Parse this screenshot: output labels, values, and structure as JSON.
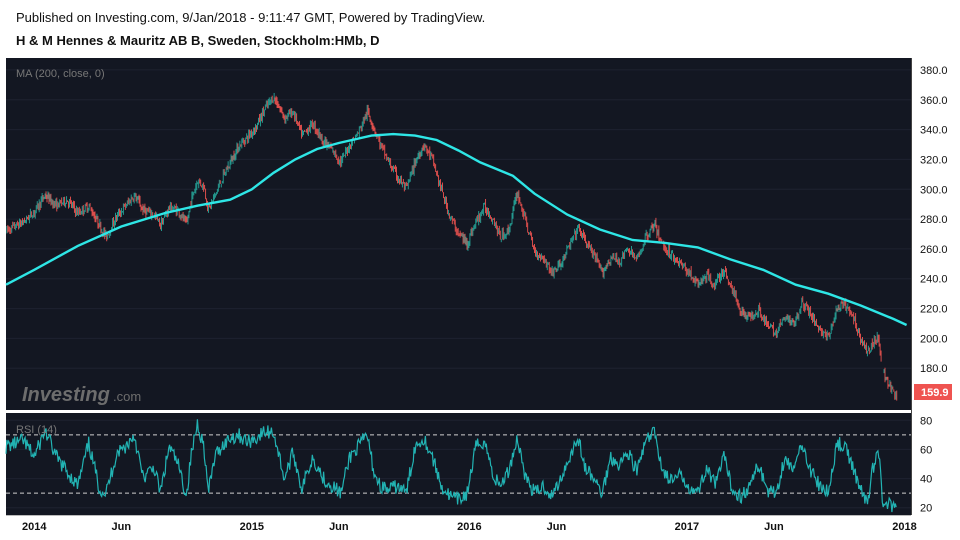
{
  "header": {
    "published": "Published on Investing.com, 9/Jan/2018 - 9:11:47 GMT, Powered by TradingView.",
    "symbol": "H & M Hennes & Mauritz AB B, Sweden, Stockholm:HMb, D"
  },
  "watermark": {
    "brand": "Investing",
    "suffix": ".com"
  },
  "colors": {
    "background": "#131722",
    "candle_up": "#26a69a",
    "candle_down": "#ef5350",
    "ma_line": "#2ee6e6",
    "rsi_line": "#22b3b3",
    "last_price_badge": "#ef5350"
  },
  "chart_data": [
    {
      "type": "candlestick",
      "panel": "price",
      "title": "MA (200, close, 0)",
      "y_ticks": [
        180,
        200,
        220,
        240,
        260,
        280,
        300,
        320,
        340,
        360,
        380
      ],
      "ylim": [
        152,
        388
      ],
      "last_price": "159.9",
      "x_ticks": [
        "2014",
        "Jun",
        "2015",
        "Jun",
        "2016",
        "Jun",
        "2017",
        "Jun",
        "2018"
      ],
      "x_tick_positions": [
        0.0,
        0.4,
        1.0,
        1.4,
        2.0,
        2.4,
        3.0,
        3.4,
        4.0
      ],
      "xlim": [
        -0.13,
        4.03
      ],
      "close_path": [
        {
          "x": -0.13,
          "y": 272
        },
        {
          "x": -0.05,
          "y": 278
        },
        {
          "x": 0.0,
          "y": 285
        },
        {
          "x": 0.05,
          "y": 296
        },
        {
          "x": 0.1,
          "y": 289
        },
        {
          "x": 0.15,
          "y": 293
        },
        {
          "x": 0.2,
          "y": 284
        },
        {
          "x": 0.25,
          "y": 289
        },
        {
          "x": 0.3,
          "y": 276
        },
        {
          "x": 0.33,
          "y": 268
        },
        {
          "x": 0.38,
          "y": 282
        },
        {
          "x": 0.42,
          "y": 289
        },
        {
          "x": 0.46,
          "y": 296
        },
        {
          "x": 0.5,
          "y": 286
        },
        {
          "x": 0.55,
          "y": 283
        },
        {
          "x": 0.58,
          "y": 276
        },
        {
          "x": 0.62,
          "y": 288
        },
        {
          "x": 0.66,
          "y": 286
        },
        {
          "x": 0.7,
          "y": 276
        },
        {
          "x": 0.72,
          "y": 292
        },
        {
          "x": 0.75,
          "y": 306
        },
        {
          "x": 0.78,
          "y": 302
        },
        {
          "x": 0.8,
          "y": 286
        },
        {
          "x": 0.83,
          "y": 296
        },
        {
          "x": 0.86,
          "y": 306
        },
        {
          "x": 0.9,
          "y": 318
        },
        {
          "x": 0.94,
          "y": 329
        },
        {
          "x": 0.98,
          "y": 335
        },
        {
          "x": 1.02,
          "y": 342
        },
        {
          "x": 1.06,
          "y": 354
        },
        {
          "x": 1.1,
          "y": 362
        },
        {
          "x": 1.15,
          "y": 348
        },
        {
          "x": 1.19,
          "y": 352
        },
        {
          "x": 1.23,
          "y": 336
        },
        {
          "x": 1.28,
          "y": 344
        },
        {
          "x": 1.33,
          "y": 332
        },
        {
          "x": 1.37,
          "y": 326
        },
        {
          "x": 1.41,
          "y": 318
        },
        {
          "x": 1.45,
          "y": 330
        },
        {
          "x": 1.49,
          "y": 338
        },
        {
          "x": 1.53,
          "y": 352
        },
        {
          "x": 1.56,
          "y": 342
        },
        {
          "x": 1.59,
          "y": 330
        },
        {
          "x": 1.63,
          "y": 318
        },
        {
          "x": 1.67,
          "y": 308
        },
        {
          "x": 1.71,
          "y": 300
        },
        {
          "x": 1.75,
          "y": 318
        },
        {
          "x": 1.79,
          "y": 330
        },
        {
          "x": 1.83,
          "y": 320
        },
        {
          "x": 1.87,
          "y": 300
        },
        {
          "x": 1.91,
          "y": 282
        },
        {
          "x": 1.95,
          "y": 270
        },
        {
          "x": 1.99,
          "y": 264
        },
        {
          "x": 2.03,
          "y": 278
        },
        {
          "x": 2.07,
          "y": 288
        },
        {
          "x": 2.11,
          "y": 280
        },
        {
          "x": 2.14,
          "y": 268
        },
        {
          "x": 2.18,
          "y": 272
        },
        {
          "x": 2.22,
          "y": 298
        },
        {
          "x": 2.26,
          "y": 278
        },
        {
          "x": 2.3,
          "y": 258
        },
        {
          "x": 2.34,
          "y": 254
        },
        {
          "x": 2.38,
          "y": 244
        },
        {
          "x": 2.42,
          "y": 250
        },
        {
          "x": 2.46,
          "y": 262
        },
        {
          "x": 2.5,
          "y": 274
        },
        {
          "x": 2.53,
          "y": 266
        },
        {
          "x": 2.57,
          "y": 256
        },
        {
          "x": 2.61,
          "y": 244
        },
        {
          "x": 2.65,
          "y": 254
        },
        {
          "x": 2.69,
          "y": 252
        },
        {
          "x": 2.73,
          "y": 260
        },
        {
          "x": 2.77,
          "y": 252
        },
        {
          "x": 2.81,
          "y": 268
        },
        {
          "x": 2.85,
          "y": 276
        },
        {
          "x": 2.89,
          "y": 262
        },
        {
          "x": 2.93,
          "y": 256
        },
        {
          "x": 2.97,
          "y": 250
        },
        {
          "x": 3.01,
          "y": 244
        },
        {
          "x": 3.05,
          "y": 236
        },
        {
          "x": 3.09,
          "y": 242
        },
        {
          "x": 3.13,
          "y": 236
        },
        {
          "x": 3.17,
          "y": 246
        },
        {
          "x": 3.21,
          "y": 232
        },
        {
          "x": 3.25,
          "y": 218
        },
        {
          "x": 3.29,
          "y": 214
        },
        {
          "x": 3.33,
          "y": 220
        },
        {
          "x": 3.37,
          "y": 208
        },
        {
          "x": 3.41,
          "y": 204
        },
        {
          "x": 3.45,
          "y": 214
        },
        {
          "x": 3.49,
          "y": 210
        },
        {
          "x": 3.53,
          "y": 224
        },
        {
          "x": 3.57,
          "y": 216
        },
        {
          "x": 3.61,
          "y": 206
        },
        {
          "x": 3.65,
          "y": 200
        },
        {
          "x": 3.69,
          "y": 220
        },
        {
          "x": 3.73,
          "y": 222
        },
        {
          "x": 3.77,
          "y": 212
        },
        {
          "x": 3.8,
          "y": 200
        },
        {
          "x": 3.83,
          "y": 190
        },
        {
          "x": 3.85,
          "y": 196
        },
        {
          "x": 3.88,
          "y": 202
        },
        {
          "x": 3.9,
          "y": 178
        },
        {
          "x": 3.93,
          "y": 168
        },
        {
          "x": 3.96,
          "y": 161
        }
      ],
      "ma200": [
        {
          "x": -0.13,
          "y": 236
        },
        {
          "x": 0.0,
          "y": 246
        },
        {
          "x": 0.2,
          "y": 262
        },
        {
          "x": 0.4,
          "y": 275
        },
        {
          "x": 0.6,
          "y": 284
        },
        {
          "x": 0.75,
          "y": 289
        },
        {
          "x": 0.9,
          "y": 293
        },
        {
          "x": 1.0,
          "y": 300
        },
        {
          "x": 1.1,
          "y": 311
        },
        {
          "x": 1.2,
          "y": 320
        },
        {
          "x": 1.3,
          "y": 327
        },
        {
          "x": 1.4,
          "y": 331
        },
        {
          "x": 1.55,
          "y": 336
        },
        {
          "x": 1.65,
          "y": 337
        },
        {
          "x": 1.75,
          "y": 336
        },
        {
          "x": 1.85,
          "y": 333
        },
        {
          "x": 1.95,
          "y": 326
        },
        {
          "x": 2.05,
          "y": 318
        },
        {
          "x": 2.2,
          "y": 309
        },
        {
          "x": 2.3,
          "y": 297
        },
        {
          "x": 2.45,
          "y": 283
        },
        {
          "x": 2.6,
          "y": 273
        },
        {
          "x": 2.75,
          "y": 266
        },
        {
          "x": 2.9,
          "y": 264
        },
        {
          "x": 3.05,
          "y": 261
        },
        {
          "x": 3.2,
          "y": 253
        },
        {
          "x": 3.35,
          "y": 246
        },
        {
          "x": 3.5,
          "y": 236
        },
        {
          "x": 3.65,
          "y": 230
        },
        {
          "x": 3.8,
          "y": 222
        },
        {
          "x": 3.95,
          "y": 213
        },
        {
          "x": 4.01,
          "y": 209
        }
      ]
    },
    {
      "type": "line",
      "panel": "rsi",
      "title": "RSI (14)",
      "y_ticks": [
        20,
        40,
        60,
        80
      ],
      "ylim": [
        15,
        85
      ],
      "reference_lines": [
        30,
        70
      ],
      "xlim": [
        -0.13,
        4.03
      ],
      "values_path": [
        {
          "x": -0.13,
          "y": 62
        },
        {
          "x": -0.05,
          "y": 66
        },
        {
          "x": 0.0,
          "y": 55
        },
        {
          "x": 0.05,
          "y": 73
        },
        {
          "x": 0.1,
          "y": 55
        },
        {
          "x": 0.15,
          "y": 45
        },
        {
          "x": 0.2,
          "y": 35
        },
        {
          "x": 0.25,
          "y": 64
        },
        {
          "x": 0.3,
          "y": 33
        },
        {
          "x": 0.33,
          "y": 30
        },
        {
          "x": 0.38,
          "y": 58
        },
        {
          "x": 0.42,
          "y": 62
        },
        {
          "x": 0.46,
          "y": 70
        },
        {
          "x": 0.5,
          "y": 40
        },
        {
          "x": 0.55,
          "y": 48
        },
        {
          "x": 0.58,
          "y": 30
        },
        {
          "x": 0.62,
          "y": 62
        },
        {
          "x": 0.66,
          "y": 50
        },
        {
          "x": 0.7,
          "y": 28
        },
        {
          "x": 0.72,
          "y": 55
        },
        {
          "x": 0.75,
          "y": 78
        },
        {
          "x": 0.78,
          "y": 62
        },
        {
          "x": 0.8,
          "y": 30
        },
        {
          "x": 0.83,
          "y": 55
        },
        {
          "x": 0.86,
          "y": 62
        },
        {
          "x": 0.9,
          "y": 68
        },
        {
          "x": 0.94,
          "y": 70
        },
        {
          "x": 0.98,
          "y": 65
        },
        {
          "x": 1.02,
          "y": 68
        },
        {
          "x": 1.06,
          "y": 72
        },
        {
          "x": 1.1,
          "y": 72
        },
        {
          "x": 1.15,
          "y": 40
        },
        {
          "x": 1.19,
          "y": 58
        },
        {
          "x": 1.23,
          "y": 33
        },
        {
          "x": 1.28,
          "y": 55
        },
        {
          "x": 1.33,
          "y": 40
        },
        {
          "x": 1.37,
          "y": 35
        },
        {
          "x": 1.41,
          "y": 30
        },
        {
          "x": 1.45,
          "y": 55
        },
        {
          "x": 1.49,
          "y": 62
        },
        {
          "x": 1.53,
          "y": 70
        },
        {
          "x": 1.56,
          "y": 45
        },
        {
          "x": 1.59,
          "y": 35
        },
        {
          "x": 1.63,
          "y": 32
        },
        {
          "x": 1.67,
          "y": 35
        },
        {
          "x": 1.71,
          "y": 30
        },
        {
          "x": 1.75,
          "y": 62
        },
        {
          "x": 1.79,
          "y": 68
        },
        {
          "x": 1.83,
          "y": 55
        },
        {
          "x": 1.87,
          "y": 35
        },
        {
          "x": 1.91,
          "y": 28
        },
        {
          "x": 1.95,
          "y": 25
        },
        {
          "x": 1.99,
          "y": 30
        },
        {
          "x": 2.03,
          "y": 62
        },
        {
          "x": 2.07,
          "y": 66
        },
        {
          "x": 2.11,
          "y": 42
        },
        {
          "x": 2.14,
          "y": 35
        },
        {
          "x": 2.18,
          "y": 45
        },
        {
          "x": 2.22,
          "y": 68
        },
        {
          "x": 2.26,
          "y": 40
        },
        {
          "x": 2.3,
          "y": 30
        },
        {
          "x": 2.34,
          "y": 35
        },
        {
          "x": 2.38,
          "y": 28
        },
        {
          "x": 2.42,
          "y": 40
        },
        {
          "x": 2.46,
          "y": 55
        },
        {
          "x": 2.5,
          "y": 68
        },
        {
          "x": 2.53,
          "y": 48
        },
        {
          "x": 2.57,
          "y": 40
        },
        {
          "x": 2.61,
          "y": 30
        },
        {
          "x": 2.65,
          "y": 55
        },
        {
          "x": 2.69,
          "y": 50
        },
        {
          "x": 2.73,
          "y": 58
        },
        {
          "x": 2.77,
          "y": 45
        },
        {
          "x": 2.81,
          "y": 65
        },
        {
          "x": 2.85,
          "y": 72
        },
        {
          "x": 2.89,
          "y": 45
        },
        {
          "x": 2.93,
          "y": 38
        },
        {
          "x": 2.97,
          "y": 42
        },
        {
          "x": 3.01,
          "y": 35
        },
        {
          "x": 3.05,
          "y": 30
        },
        {
          "x": 3.09,
          "y": 48
        },
        {
          "x": 3.13,
          "y": 35
        },
        {
          "x": 3.17,
          "y": 55
        },
        {
          "x": 3.21,
          "y": 32
        },
        {
          "x": 3.25,
          "y": 28
        },
        {
          "x": 3.29,
          "y": 35
        },
        {
          "x": 3.33,
          "y": 50
        },
        {
          "x": 3.37,
          "y": 32
        },
        {
          "x": 3.41,
          "y": 30
        },
        {
          "x": 3.45,
          "y": 55
        },
        {
          "x": 3.49,
          "y": 45
        },
        {
          "x": 3.53,
          "y": 65
        },
        {
          "x": 3.57,
          "y": 45
        },
        {
          "x": 3.61,
          "y": 35
        },
        {
          "x": 3.65,
          "y": 30
        },
        {
          "x": 3.69,
          "y": 65
        },
        {
          "x": 3.73,
          "y": 60
        },
        {
          "x": 3.77,
          "y": 45
        },
        {
          "x": 3.8,
          "y": 32
        },
        {
          "x": 3.83,
          "y": 22
        },
        {
          "x": 3.85,
          "y": 45
        },
        {
          "x": 3.88,
          "y": 60
        },
        {
          "x": 3.9,
          "y": 25
        },
        {
          "x": 3.93,
          "y": 22
        },
        {
          "x": 3.96,
          "y": 19
        }
      ]
    }
  ]
}
